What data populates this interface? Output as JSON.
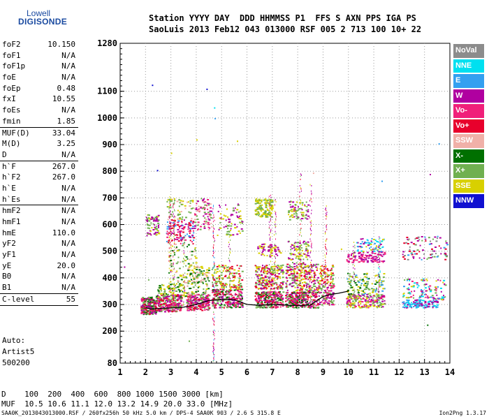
{
  "logo": {
    "line1": "Lowell",
    "line2": "DIGISONDE"
  },
  "header": {
    "line1": "Station YYYY DAY  DDD HHMMSS P1  FFS S AXN PPS IGA PS",
    "line2": "SaoLuis 2013 Feb12 043 013000 RSF 005 2 713 100 10+ 22"
  },
  "params": {
    "group1": [
      {
        "label": "foF2",
        "value": "10.150"
      },
      {
        "label": "foF1",
        "value": "N/A"
      },
      {
        "label": "foF1p",
        "value": "N/A"
      },
      {
        "label": "foE",
        "value": "N/A"
      },
      {
        "label": "foEp",
        "value": "0.48"
      },
      {
        "label": "fxI",
        "value": "10.55"
      },
      {
        "label": "foEs",
        "value": "N/A"
      },
      {
        "label": "fmin",
        "value": "1.85"
      }
    ],
    "group2": [
      {
        "label": "MUF(D)",
        "value": "33.04"
      },
      {
        "label": "M(D)",
        "value": "3.25"
      },
      {
        "label": "D",
        "value": "N/A"
      }
    ],
    "group3": [
      {
        "label": "h`F",
        "value": "267.0"
      },
      {
        "label": "h`F2",
        "value": "267.0"
      },
      {
        "label": "h`E",
        "value": "N/A"
      },
      {
        "label": "h`Es",
        "value": "N/A"
      }
    ],
    "group4": [
      {
        "label": "hmF2",
        "value": "N/A"
      },
      {
        "label": "hmF1",
        "value": "N/A"
      },
      {
        "label": "hmE",
        "value": "110.0"
      },
      {
        "label": "yF2",
        "value": "N/A"
      },
      {
        "label": "yF1",
        "value": "N/A"
      },
      {
        "label": "yE",
        "value": "20.0"
      },
      {
        "label": "B0",
        "value": "N/A"
      },
      {
        "label": "B1",
        "value": "N/A"
      }
    ],
    "group5": [
      {
        "label": "C-level",
        "value": "55"
      }
    ]
  },
  "auto": {
    "line1": "Auto:",
    "line2": "Artist5",
    "line3": "500200"
  },
  "muf_table": {
    "line1": "D    100  200  400  600  800 1000 1500 3000 [km]",
    "line2": "MUF  10.5 10.6 11.1 12.0 13.2 14.9 20.0 33.0 [MHz]"
  },
  "footer": {
    "left": "SAA0K_2013043013000.RSF / 260fx256h 50 kHz 5.0 km / DPS-4 SAA0K 903 / 2.6 S 315.8 E",
    "right": "Ion2Png 1.3.17"
  },
  "legend": [
    {
      "label": "NoVal",
      "color": "#8c8c8c"
    },
    {
      "label": "NNE",
      "color": "#00e0f0"
    },
    {
      "label": "E",
      "color": "#33a0f0"
    },
    {
      "label": "W",
      "color": "#b000a0"
    },
    {
      "label": "Vo-",
      "color": "#f0207a"
    },
    {
      "label": "Vo+",
      "color": "#e8002c"
    },
    {
      "label": "SSW",
      "color": "#f0b0a8"
    },
    {
      "label": "X-",
      "color": "#007000"
    },
    {
      "label": "X+",
      "color": "#70b050"
    },
    {
      "label": "SSE",
      "color": "#d8d000"
    },
    {
      "label": "NNW",
      "color": "#1010d0"
    }
  ],
  "chart_data": {
    "type": "scatter",
    "xlim": [
      1,
      14
    ],
    "ylim": [
      80,
      1280
    ],
    "x_ticks": [
      "1",
      "2",
      "3",
      "4",
      "5",
      "6",
      "7",
      "8",
      "9",
      "10",
      "11",
      "12",
      "13",
      "14"
    ],
    "y_ticks": [
      "80",
      "200",
      "300",
      "400",
      "500",
      "600",
      "700",
      "800",
      "900",
      "1000",
      "1100",
      "1280"
    ],
    "y_tick_values": [
      80,
      200,
      300,
      400,
      500,
      600,
      700,
      800,
      900,
      1000,
      1100,
      1280
    ],
    "grid": true,
    "trace_line": {
      "x": [
        2.0,
        2.2,
        2.5,
        3.0,
        3.5,
        4.0,
        4.5,
        5.0,
        5.5,
        6.0,
        6.5,
        7.0,
        7.5,
        8.0,
        8.5,
        9.0,
        9.3,
        9.6,
        10.0
      ],
      "y": [
        288,
        283,
        285,
        287,
        290,
        300,
        315,
        318,
        318,
        300,
        297,
        300,
        298,
        296,
        298,
        330,
        338,
        342,
        350
      ]
    },
    "clusters": [
      {
        "x": [
          1.8,
          2.4
        ],
        "y": [
          265,
          330
        ],
        "colors": [
          4,
          5,
          3,
          7,
          8
        ],
        "n": 220
      },
      {
        "x": [
          2.4,
          3.4
        ],
        "y": [
          275,
          340
        ],
        "colors": [
          3,
          4,
          5,
          8
        ],
        "n": 260
      },
      {
        "x": [
          2.4,
          3.6
        ],
        "y": [
          330,
          380
        ],
        "colors": [
          9,
          8,
          7
        ],
        "n": 80
      },
      {
        "x": [
          2.0,
          2.5
        ],
        "y": [
          560,
          640
        ],
        "colors": [
          9,
          8,
          3
        ],
        "n": 70
      },
      {
        "x": [
          2.8,
          3.9
        ],
        "y": [
          530,
          620
        ],
        "colors": [
          3,
          4,
          5,
          2
        ],
        "n": 120
      },
      {
        "x": [
          2.8,
          3.9
        ],
        "y": [
          620,
          700
        ],
        "colors": [
          8,
          9,
          6
        ],
        "n": 60
      },
      {
        "x": [
          2.9,
          4.0
        ],
        "y": [
          380,
          530
        ],
        "colors": [
          7,
          8,
          9,
          6
        ],
        "n": 90
      },
      {
        "x": [
          3.6,
          4.5
        ],
        "y": [
          280,
          340
        ],
        "colors": [
          3,
          4,
          5,
          8
        ],
        "n": 220
      },
      {
        "x": [
          3.6,
          4.5
        ],
        "y": [
          340,
          450
        ],
        "colors": [
          9,
          8,
          7,
          6
        ],
        "n": 120
      },
      {
        "x": [
          3.9,
          4.6
        ],
        "y": [
          580,
          700
        ],
        "colors": [
          3,
          4,
          8,
          6
        ],
        "n": 90
      },
      {
        "x": [
          4.6,
          5.8
        ],
        "y": [
          290,
          360
        ],
        "colors": [
          3,
          4,
          5,
          8,
          7
        ],
        "n": 240
      },
      {
        "x": [
          4.6,
          5.8
        ],
        "y": [
          360,
          450
        ],
        "colors": [
          9,
          8,
          5
        ],
        "n": 140
      },
      {
        "x": [
          4.8,
          5.8
        ],
        "y": [
          560,
          680
        ],
        "colors": [
          9,
          8,
          3
        ],
        "n": 80
      },
      {
        "x": [
          6.3,
          7.4
        ],
        "y": [
          290,
          350
        ],
        "colors": [
          3,
          4,
          5,
          7,
          8
        ],
        "n": 260
      },
      {
        "x": [
          6.3,
          7.4
        ],
        "y": [
          360,
          450
        ],
        "colors": [
          9,
          8,
          5,
          3
        ],
        "n": 220
      },
      {
        "x": [
          6.3,
          7.0
        ],
        "y": [
          630,
          700
        ],
        "colors": [
          9,
          8
        ],
        "n": 140
      },
      {
        "x": [
          6.4,
          7.3
        ],
        "y": [
          480,
          530
        ],
        "colors": [
          3,
          9
        ],
        "n": 60
      },
      {
        "x": [
          7.5,
          8.8
        ],
        "y": [
          290,
          350
        ],
        "colors": [
          3,
          4,
          5,
          8,
          7
        ],
        "n": 280
      },
      {
        "x": [
          7.5,
          8.8
        ],
        "y": [
          350,
          460
        ],
        "colors": [
          9,
          8,
          3,
          5
        ],
        "n": 240
      },
      {
        "x": [
          7.6,
          8.4
        ],
        "y": [
          470,
          540
        ],
        "colors": [
          3,
          9,
          8
        ],
        "n": 80
      },
      {
        "x": [
          7.6,
          8.4
        ],
        "y": [
          620,
          690
        ],
        "colors": [
          9,
          3,
          8
        ],
        "n": 70
      },
      {
        "x": [
          8.8,
          9.4
        ],
        "y": [
          300,
          380
        ],
        "colors": [
          3,
          4,
          8
        ],
        "n": 110
      },
      {
        "x": [
          8.8,
          9.4
        ],
        "y": [
          380,
          450
        ],
        "colors": [
          9,
          8,
          5
        ],
        "n": 70
      },
      {
        "x": [
          9.9,
          11.4
        ],
        "y": [
          290,
          340
        ],
        "colors": [
          3,
          4,
          9,
          8
        ],
        "n": 200
      },
      {
        "x": [
          9.9,
          11.4
        ],
        "y": [
          340,
          420
        ],
        "colors": [
          9,
          8,
          7,
          2
        ],
        "n": 120
      },
      {
        "x": [
          9.9,
          11.4
        ],
        "y": [
          460,
          500
        ],
        "colors": [
          3,
          4
        ],
        "n": 110
      },
      {
        "x": [
          10.3,
          11.4
        ],
        "y": [
          500,
          550
        ],
        "colors": [
          1,
          2,
          9,
          3
        ],
        "n": 70
      },
      {
        "x": [
          12.1,
          13.5
        ],
        "y": [
          290,
          320
        ],
        "colors": [
          1,
          2,
          3
        ],
        "n": 130
      },
      {
        "x": [
          12.1,
          13.8
        ],
        "y": [
          320,
          400
        ],
        "colors": [
          1,
          3,
          4,
          8,
          9,
          2
        ],
        "n": 110
      },
      {
        "x": [
          12.1,
          13.9
        ],
        "y": [
          470,
          560
        ],
        "colors": [
          3,
          5,
          2,
          0,
          8
        ],
        "n": 90
      }
    ],
    "columns": [
      {
        "x": 2.95,
        "y": [
          350,
          720
        ],
        "colors": [
          3,
          8,
          9,
          5
        ]
      },
      {
        "x": 3.1,
        "y": [
          330,
          700
        ],
        "colors": [
          3,
          4,
          8,
          9
        ]
      },
      {
        "x": 4.68,
        "y": [
          90,
          680
        ],
        "colors": [
          3,
          4,
          5,
          2,
          8
        ]
      },
      {
        "x": 6.9,
        "y": [
          300,
          720
        ],
        "colors": [
          9,
          3,
          8,
          4
        ]
      },
      {
        "x": 7.1,
        "y": [
          300,
          700
        ],
        "colors": [
          3,
          9,
          8,
          4
        ]
      },
      {
        "x": 8.1,
        "y": [
          300,
          800
        ],
        "colors": [
          3,
          9,
          8,
          5
        ]
      },
      {
        "x": 8.5,
        "y": [
          300,
          760
        ],
        "colors": [
          3,
          9,
          4
        ]
      },
      {
        "x": 9.1,
        "y": [
          300,
          680
        ],
        "colors": [
          3,
          9,
          5
        ]
      },
      {
        "x": 3.5,
        "y": [
          300,
          560
        ],
        "colors": [
          8,
          9,
          3
        ]
      },
      {
        "x": 5.3,
        "y": [
          300,
          560
        ],
        "colors": [
          8,
          9,
          3
        ]
      },
      {
        "x": 10.2,
        "y": [
          300,
          540
        ],
        "colors": [
          3,
          9,
          8
        ]
      },
      {
        "x": 11.2,
        "y": [
          300,
          560
        ],
        "colors": [
          3,
          1,
          8
        ]
      }
    ],
    "outliers": [
      {
        "x": 2.25,
        "y": 1125,
        "c": 10
      },
      {
        "x": 4.4,
        "y": 1110,
        "c": 10
      },
      {
        "x": 4.7,
        "y": 1040,
        "c": 1
      },
      {
        "x": 4.72,
        "y": 1000,
        "c": 2
      },
      {
        "x": 2.45,
        "y": 805,
        "c": 10
      },
      {
        "x": 5.6,
        "y": 915,
        "c": 9
      },
      {
        "x": 1.15,
        "y": 443,
        "c": 3
      },
      {
        "x": 11.3,
        "y": 765,
        "c": 2
      },
      {
        "x": 13.55,
        "y": 905,
        "c": 2
      },
      {
        "x": 13.2,
        "y": 790,
        "c": 3
      },
      {
        "x": 13.1,
        "y": 225,
        "c": 7
      },
      {
        "x": 3.7,
        "y": 165,
        "c": 8
      },
      {
        "x": 4.0,
        "y": 920,
        "c": 9
      },
      {
        "x": 3.0,
        "y": 870,
        "c": 9
      },
      {
        "x": 8.6,
        "y": 795,
        "c": 6
      },
      {
        "x": 2.1,
        "y": 395,
        "c": 8
      },
      {
        "x": 9.7,
        "y": 510,
        "c": 9
      }
    ]
  }
}
